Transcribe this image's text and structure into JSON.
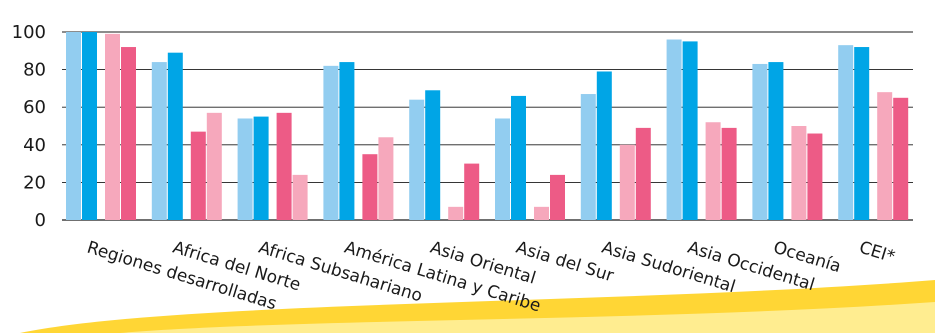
{
  "chart_data": {
    "type": "bar",
    "categories": [
      "Regiones desarrolladas",
      "Africa del Norte",
      "Africa Subsahariano",
      "América Latina y Caribe",
      "Asia Oriental",
      "Asia del Sur",
      "Asia Sudoriental",
      "Asia Occidental",
      "Oceanía",
      "CEI*"
    ],
    "series": [
      {
        "color": "#92cdf0",
        "values": [
          100,
          84,
          54,
          82,
          64,
          54,
          67,
          96,
          83,
          93
        ]
      },
      {
        "color": "#00a5e6",
        "values": [
          100,
          89,
          55,
          84,
          69,
          66,
          79,
          95,
          84,
          92
        ]
      },
      {
        "color": "#f6a8bc",
        "values": [
          99,
          47,
          57,
          35,
          7,
          7,
          40,
          52,
          50,
          68
        ]
      },
      {
        "color": "#ed5b86",
        "values": [
          92,
          57,
          24,
          44,
          30,
          24,
          49,
          49,
          46,
          65
        ]
      }
    ],
    "series_color_overrides": [
      {
        "category": 1,
        "series": 2,
        "color": "#ed5b86"
      },
      {
        "category": 1,
        "series": 3,
        "color": "#f6a8bc"
      },
      {
        "category": 2,
        "series": 2,
        "color": "#ed5b86"
      },
      {
        "category": 2,
        "series": 3,
        "color": "#f6a8bc"
      },
      {
        "category": 3,
        "series": 2,
        "color": "#ed5b86"
      },
      {
        "category": 3,
        "series": 3,
        "color": "#f6a8bc"
      },
      {
        "category": 4,
        "series": 3,
        "color": "#ed5b86"
      },
      {
        "category": 5,
        "series": 3,
        "color": "#ed5b86"
      }
    ],
    "ylim": [
      0,
      100
    ],
    "yticks": [
      0,
      20,
      40,
      60,
      80,
      100
    ],
    "grid": true,
    "legend": "none",
    "title": "",
    "xlabel": "",
    "ylabel": ""
  }
}
